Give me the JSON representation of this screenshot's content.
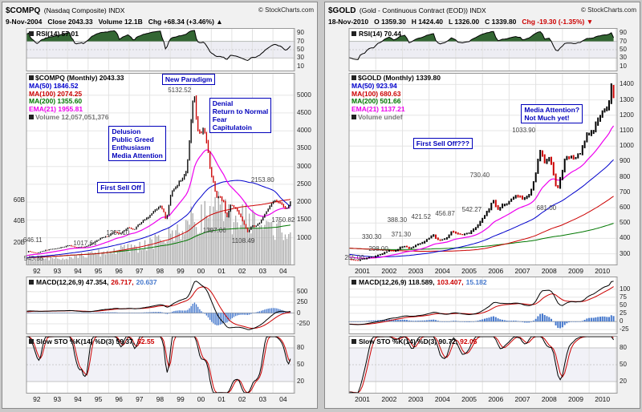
{
  "colors": {
    "up": "#000000",
    "down": "#cc0000",
    "ma50": "#0000cc",
    "ma100": "#cc0000",
    "ma200": "#007700",
    "ema21": "#ee00ee",
    "volume": "#aaaaaa",
    "macd_hist": "#4477cc",
    "macd_signal": "#cc0000",
    "macd_line": "#000000",
    "annotation": "#0000bb",
    "grid_h": "#e6e6e6",
    "grid_v": "#e2e2e2",
    "panel_border": "#999999",
    "rsi_fill": "#336633",
    "band": "#ededf3",
    "sto_band": "#f1f1f7",
    "sto_d": "#cc0000"
  },
  "charts": [
    {
      "id": "compq",
      "header": {
        "symbol": "$COMPQ",
        "name": "(Nasdaq Composite) INDX",
        "copyright": "© StockCharts.com",
        "date": "9-Nov-2004",
        "quote_items": [
          {
            "label": "Close",
            "value": "2043.33"
          },
          {
            "label": "Volume",
            "value": "12.1B"
          },
          {
            "label": "Chg",
            "value": "+68.34 (+3.46%)",
            "arrow": "▲",
            "color": "#000000"
          }
        ]
      },
      "rsi": {
        "legend": "RSI(14) 57.01"
      },
      "main": {
        "legend": [
          {
            "text": "$COMPQ (Monthly) 2043.33",
            "color": "#000000",
            "icon": true
          },
          {
            "text": "MA(50) 1846.52",
            "color": "#0000cc"
          },
          {
            "text": "MA(100) 2074.25",
            "color": "#cc0000"
          },
          {
            "text": "MA(200) 1355.60",
            "color": "#007700"
          },
          {
            "text": "EMA(21) 1955.81",
            "color": "#ee00ee"
          },
          {
            "text": "Volume 12,057,051,376",
            "color": "#777777",
            "icon": true
          }
        ]
      },
      "macd": {
        "legend": [
          {
            "text": "MACD(12,26,9) 47.354,",
            "color": "#000000",
            "icon": true
          },
          {
            "text": "26.717,",
            "color": "#cc0000"
          },
          {
            "text": "20.637",
            "color": "#4477cc"
          }
        ]
      },
      "sto": {
        "legend": [
          {
            "text": "Slow STO %K(14) %D(3) 59.37,",
            "color": "#000000",
            "icon": true
          },
          {
            "text": "52.55",
            "color": "#cc0000"
          }
        ]
      }
    },
    {
      "id": "gold",
      "header": {
        "symbol": "$GOLD",
        "name": "(Gold - Continuous Contract (EOD)) INDX",
        "copyright": "© StockCharts.com",
        "date": "18-Nov-2010",
        "quote_items": [
          {
            "label": "O",
            "value": "1359.30"
          },
          {
            "label": "H",
            "value": "1424.40"
          },
          {
            "label": "L",
            "value": "1326.00"
          },
          {
            "label": "C",
            "value": "1339.80"
          },
          {
            "label": "Chg",
            "value": "-19.30 (-1.35%)",
            "arrow": "▼",
            "color": "#cc0000"
          }
        ]
      },
      "rsi": {
        "legend": "RSI(14) 70.44"
      },
      "main": {
        "legend": [
          {
            "text": "$GOLD (Monthly) 1339.80",
            "color": "#000000",
            "icon": true
          },
          {
            "text": "MA(50) 923.94",
            "color": "#0000cc"
          },
          {
            "text": "MA(100) 680.63",
            "color": "#cc0000"
          },
          {
            "text": "MA(200) 501.66",
            "color": "#007700"
          },
          {
            "text": "EMA(21) 1137.21",
            "color": "#ee00ee"
          },
          {
            "text": "Volume undef",
            "color": "#777777",
            "icon": true
          }
        ]
      },
      "macd": {
        "legend": [
          {
            "text": "MACD(12,26,9) 118.589,",
            "color": "#000000",
            "icon": true
          },
          {
            "text": "103.407,",
            "color": "#cc0000"
          },
          {
            "text": "15.182",
            "color": "#4477cc"
          }
        ]
      },
      "sto": {
        "legend": [
          {
            "text": "Slow STO %K(14) %D(3) 90.72,",
            "color": "#000000",
            "icon": true
          },
          {
            "text": "92.05",
            "color": "#cc0000"
          }
        ]
      }
    }
  ],
  "chart_data": [
    {
      "type": "candlestick",
      "symbol": "$COMPQ",
      "timeframe": "Monthly",
      "x_range": [
        1992.0,
        2005.05
      ],
      "x_ticks": [
        [
          1992,
          "92"
        ],
        [
          1993,
          "93"
        ],
        [
          1994,
          "94"
        ],
        [
          1995,
          "95"
        ],
        [
          1996,
          "96"
        ],
        [
          1997,
          "97"
        ],
        [
          1998,
          "98"
        ],
        [
          1999,
          "99"
        ],
        [
          2000,
          "00"
        ],
        [
          2001,
          "01"
        ],
        [
          2002,
          "02"
        ],
        [
          2003,
          "03"
        ],
        [
          2004,
          "04"
        ]
      ],
      "price_range": [
        250,
        5600
      ],
      "price_ticks": [
        1000,
        1500,
        2000,
        2500,
        3000,
        3500,
        4000,
        4500,
        5000
      ],
      "rsi_ticks": [
        90,
        70,
        50,
        30,
        10
      ],
      "macd_ticks": [
        500,
        250,
        0,
        -250
      ],
      "sto_ticks": [
        80,
        50,
        20
      ],
      "history_start": 1987.6,
      "end": 2004.92,
      "noise": 0.012,
      "seed": 1,
      "series_anchors": [
        [
          1987.6,
          330
        ],
        [
          1988.1,
          378
        ],
        [
          1988.6,
          392
        ],
        [
          1989.2,
          448
        ],
        [
          1989.8,
          468
        ],
        [
          1990.1,
          435
        ],
        [
          1990.6,
          378
        ],
        [
          1990.95,
          418
        ],
        [
          1991.4,
          505
        ],
        [
          1991.9,
          575
        ],
        [
          1992.1,
          620
        ],
        [
          1992.5,
          566
        ],
        [
          1992.95,
          655
        ],
        [
          1993.4,
          695
        ],
        [
          1993.8,
          740
        ],
        [
          1994.1,
          792
        ],
        [
          1994.4,
          726
        ],
        [
          1994.9,
          752
        ],
        [
          1995.3,
          868
        ],
        [
          1995.65,
          1000
        ],
        [
          1995.95,
          1048
        ],
        [
          1996.3,
          1170
        ],
        [
          1996.55,
          1105
        ],
        [
          1996.95,
          1285
        ],
        [
          1997.2,
          1215
        ],
        [
          1997.6,
          1440
        ],
        [
          1997.95,
          1580
        ],
        [
          1998.25,
          1780
        ],
        [
          1998.5,
          1890
        ],
        [
          1998.68,
          1740
        ],
        [
          1998.8,
          1495
        ],
        [
          1999.05,
          2280
        ],
        [
          1999.3,
          2460
        ],
        [
          1999.6,
          2680
        ],
        [
          1999.8,
          2880
        ],
        [
          1999.98,
          4050
        ],
        [
          2000.08,
          4700
        ],
        [
          2000.17,
          5040
        ],
        [
          2000.3,
          4150
        ],
        [
          2000.45,
          3870
        ],
        [
          2000.62,
          4100
        ],
        [
          2000.8,
          3650
        ],
        [
          2000.95,
          2900
        ],
        [
          2001.1,
          2550
        ],
        [
          2001.25,
          2130
        ],
        [
          2001.45,
          2110
        ],
        [
          2001.6,
          1990
        ],
        [
          2001.73,
          1530
        ],
        [
          2001.93,
          1920
        ],
        [
          2002.1,
          1870
        ],
        [
          2002.35,
          1680
        ],
        [
          2002.6,
          1380
        ],
        [
          2002.78,
          1140
        ],
        [
          2002.95,
          1340
        ],
        [
          2003.15,
          1310
        ],
        [
          2003.45,
          1500
        ],
        [
          2003.7,
          1740
        ],
        [
          2003.95,
          1960
        ],
        [
          2004.08,
          2055
        ],
        [
          2004.3,
          1975
        ],
        [
          2004.5,
          1910
        ],
        [
          2004.65,
          1790
        ],
        [
          2004.8,
          1930
        ],
        [
          2004.92,
          2043
        ]
      ],
      "volume_anchors": [
        [
          1987.6,
          2
        ],
        [
          1992,
          4.5
        ],
        [
          1993,
          5.5
        ],
        [
          1994,
          7
        ],
        [
          1995,
          9
        ],
        [
          1996,
          12
        ],
        [
          1997,
          15
        ],
        [
          1998,
          19
        ],
        [
          1999,
          27
        ],
        [
          2000,
          40
        ],
        [
          2000.8,
          47
        ],
        [
          2001.3,
          52
        ],
        [
          2001.8,
          44
        ],
        [
          2002.3,
          42
        ],
        [
          2002.8,
          45
        ],
        [
          2003.3,
          37
        ],
        [
          2003.8,
          34
        ],
        [
          2004.4,
          33
        ],
        [
          2004.92,
          30
        ]
      ],
      "volume_axis_max": 80,
      "volume_ticks": [
        [
          20,
          "20B"
        ],
        [
          40,
          "40B"
        ],
        [
          60,
          "60B"
        ]
      ],
      "price_labels": [
        {
          "text": "5132.52",
          "x": 1999.45,
          "y": 5150
        },
        {
          "text": "2153.80",
          "x": 2003.5,
          "y": 2640
        },
        {
          "text": "1750.82",
          "x": 2004.5,
          "y": 1500
        },
        {
          "text": "1397.06",
          "x": 2001.15,
          "y": 1220
        },
        {
          "text": "1357.10",
          "x": 1996.45,
          "y": 1150
        },
        {
          "text": "1108.49",
          "x": 2002.55,
          "y": 930
        },
        {
          "text": "1017.64",
          "x": 1994.85,
          "y": 850
        },
        {
          "text": "646.11",
          "x": 1992.3,
          "y": 950
        },
        {
          "text": "545.85",
          "x": 1992.35,
          "y": 420
        }
      ],
      "annotations": [
        {
          "lines": [
            "New Paradigm"
          ],
          "x": 1998.6,
          "y": 5590
        },
        {
          "lines": [
            "Denial",
            "Return to Normal",
            "Fear",
            "Capitulatoin"
          ],
          "x": 2000.9,
          "y": 4930
        },
        {
          "lines": [
            "Delusion",
            "Public Greed",
            "Enthusiasm",
            "Media Attention"
          ],
          "x": 1996.0,
          "y": 4150
        },
        {
          "lines": [
            "First Sell Off"
          ],
          "x": 1995.45,
          "y": 2560
        }
      ]
    },
    {
      "type": "candlestick",
      "symbol": "$GOLD",
      "timeframe": "Monthly",
      "x_range": [
        2001.0,
        2011.05
      ],
      "x_ticks": [
        [
          2001,
          "2001"
        ],
        [
          2002,
          "2002"
        ],
        [
          2003,
          "2003"
        ],
        [
          2004,
          "2004"
        ],
        [
          2005,
          "2005"
        ],
        [
          2006,
          "2006"
        ],
        [
          2007,
          "2007"
        ],
        [
          2008,
          "2008"
        ],
        [
          2009,
          "2009"
        ],
        [
          2010,
          "2010"
        ]
      ],
      "price_range": [
        230,
        1470
      ],
      "price_ticks": [
        300,
        400,
        500,
        600,
        700,
        800,
        900,
        1000,
        1100,
        1200,
        1300,
        1400
      ],
      "rsi_ticks": [
        90,
        70,
        50,
        30,
        10
      ],
      "macd_ticks": [
        100,
        75,
        50,
        25,
        0,
        -25
      ],
      "sto_ticks": [
        80,
        50,
        20
      ],
      "history_start": 1993.5,
      "end": 2010.92,
      "noise": 0.01,
      "seed": 4,
      "series_anchors": [
        [
          1993.5,
          372
        ],
        [
          1994.0,
          385
        ],
        [
          1994.6,
          387
        ],
        [
          1995.2,
          383
        ],
        [
          1995.8,
          388
        ],
        [
          1996.15,
          400
        ],
        [
          1996.6,
          384
        ],
        [
          1997.1,
          352
        ],
        [
          1997.6,
          324
        ],
        [
          1998.1,
          295
        ],
        [
          1998.6,
          289
        ],
        [
          1999.0,
          287
        ],
        [
          1999.35,
          258
        ],
        [
          1999.6,
          302
        ],
        [
          1999.85,
          292
        ],
        [
          2000.1,
          284
        ],
        [
          2000.5,
          276
        ],
        [
          2000.85,
          268
        ],
        [
          2001.1,
          262
        ],
        [
          2001.3,
          257
        ],
        [
          2001.55,
          268
        ],
        [
          2001.8,
          277
        ],
        [
          2002.0,
          283
        ],
        [
          2002.25,
          302
        ],
        [
          2002.5,
          320
        ],
        [
          2002.7,
          312
        ],
        [
          2002.95,
          343
        ],
        [
          2003.1,
          351
        ],
        [
          2003.25,
          334
        ],
        [
          2003.45,
          349
        ],
        [
          2003.65,
          363
        ],
        [
          2003.85,
          386
        ],
        [
          2004.0,
          406
        ],
        [
          2004.15,
          421
        ],
        [
          2004.35,
          388
        ],
        [
          2004.55,
          393
        ],
        [
          2004.7,
          406
        ],
        [
          2004.85,
          446
        ],
        [
          2004.97,
          437
        ],
        [
          2005.1,
          426
        ],
        [
          2005.3,
          429
        ],
        [
          2005.5,
          434
        ],
        [
          2005.7,
          462
        ],
        [
          2005.85,
          494
        ],
        [
          2005.97,
          517
        ],
        [
          2006.1,
          556
        ],
        [
          2006.25,
          588
        ],
        [
          2006.37,
          648
        ],
        [
          2006.45,
          640
        ],
        [
          2006.55,
          588
        ],
        [
          2006.68,
          602
        ],
        [
          2006.85,
          627
        ],
        [
          2007.0,
          637
        ],
        [
          2007.15,
          657
        ],
        [
          2007.3,
          677
        ],
        [
          2007.45,
          662
        ],
        [
          2007.6,
          657
        ],
        [
          2007.75,
          684
        ],
        [
          2007.88,
          744
        ],
        [
          2007.97,
          792
        ],
        [
          2008.1,
          928
        ],
        [
          2008.2,
          968
        ],
        [
          2008.35,
          888
        ],
        [
          2008.5,
          922
        ],
        [
          2008.62,
          872
        ],
        [
          2008.73,
          738
        ],
        [
          2008.83,
          728
        ],
        [
          2008.97,
          818
        ],
        [
          2009.1,
          928
        ],
        [
          2009.22,
          940
        ],
        [
          2009.37,
          916
        ],
        [
          2009.52,
          932
        ],
        [
          2009.67,
          952
        ],
        [
          2009.82,
          1012
        ],
        [
          2009.95,
          1092
        ],
        [
          2010.07,
          1082
        ],
        [
          2010.2,
          1112
        ],
        [
          2010.35,
          1178
        ],
        [
          2010.5,
          1228
        ],
        [
          2010.62,
          1244
        ],
        [
          2010.72,
          1238
        ],
        [
          2010.78,
          1315
        ],
        [
          2010.83,
          1388
        ],
        [
          2010.92,
          1342
        ]
      ],
      "price_labels": [
        {
          "text": "1033.90",
          "x": 2007.55,
          "y": 1108
        },
        {
          "text": "730.40",
          "x": 2005.9,
          "y": 812
        },
        {
          "text": "681.00",
          "x": 2008.4,
          "y": 598
        },
        {
          "text": "542.27",
          "x": 2005.6,
          "y": 592
        },
        {
          "text": "456.87",
          "x": 2004.6,
          "y": 566
        },
        {
          "text": "421.52",
          "x": 2003.7,
          "y": 542
        },
        {
          "text": "388.30",
          "x": 2002.8,
          "y": 520
        },
        {
          "text": "371.30",
          "x": 2002.95,
          "y": 430
        },
        {
          "text": "330.30",
          "x": 2001.85,
          "y": 413
        },
        {
          "text": "298.00",
          "x": 2002.1,
          "y": 336
        },
        {
          "text": "255.00",
          "x": 2001.2,
          "y": 278
        }
      ],
      "annotations": [
        {
          "lines": [
            "Media Attention?",
            "Not Much yet!"
          ],
          "x": 2007.45,
          "y": 1272
        },
        {
          "lines": [
            "First Sell Off???"
          ],
          "x": 2003.4,
          "y": 1052
        }
      ]
    }
  ]
}
